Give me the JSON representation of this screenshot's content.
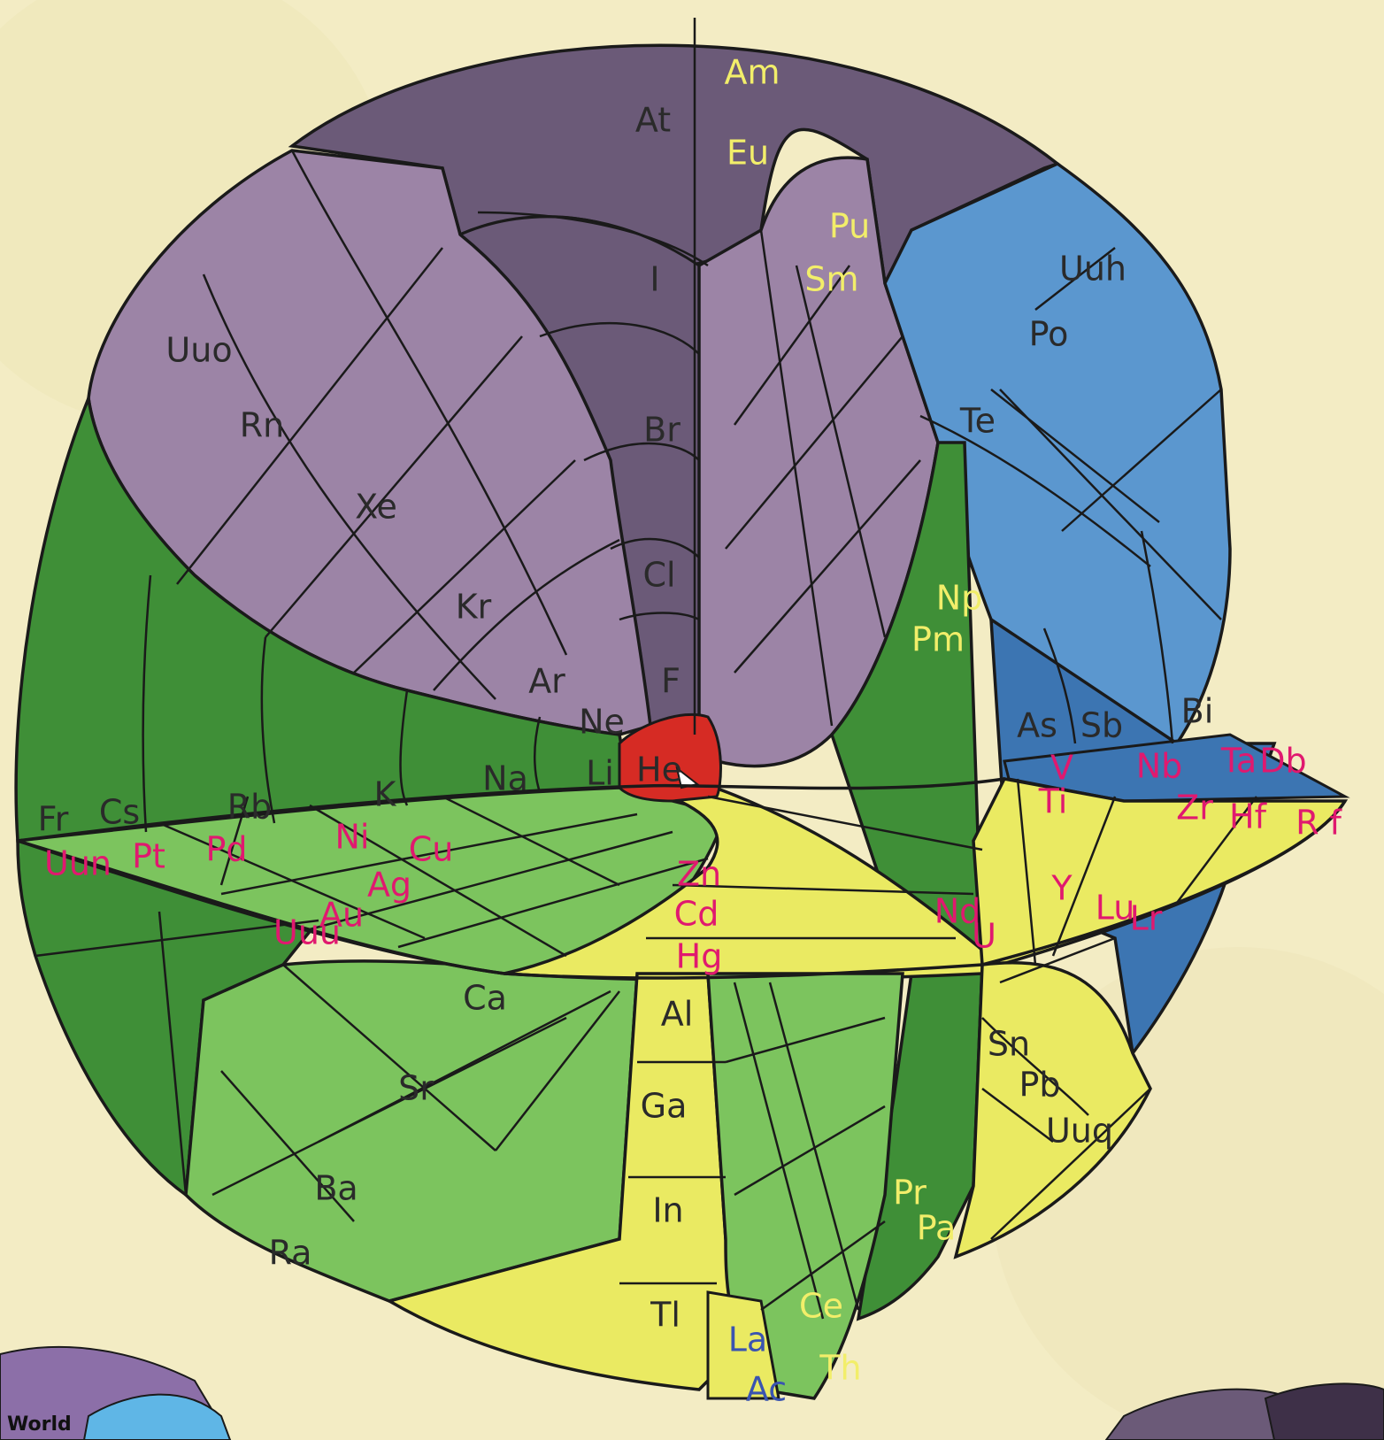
{
  "palette": {
    "background": "#f3ecc4",
    "p_block_outer": "#6b5a78",
    "p_block_inner": "#9c84a6",
    "s_block_dark": "#3f8f37",
    "s_block_light": "#7cc45e",
    "d_block": "#eaea62",
    "f_block_blue": "#5b97cf",
    "f_block_blue_dark": "#3c75b2",
    "center": "#d62b24"
  },
  "elements": {
    "dark": [
      "At",
      "I",
      "Br",
      "Cl",
      "F",
      "Ne",
      "Ar",
      "Kr",
      "Xe",
      "Rn",
      "Uuo",
      "Li",
      "Na",
      "K",
      "Rb",
      "Cs",
      "Fr",
      "Te",
      "Po",
      "Uuh",
      "As",
      "Sb",
      "Bi",
      "Al",
      "Ga",
      "In",
      "Tl",
      "Ca",
      "Sr",
      "Ba",
      "Ra",
      "Sn",
      "Pb",
      "Uuq",
      "He"
    ],
    "yellow": [
      "Am",
      "Eu",
      "Pu",
      "Sm",
      "Np",
      "Pm",
      "Pr",
      "Pa",
      "Ce",
      "Th"
    ],
    "pink": [
      "V",
      "Nb",
      "Ta",
      "Db",
      "Ti",
      "Zr",
      "Hf",
      "R f",
      "Uun",
      "Pt",
      "Pd",
      "Ni",
      "Cu",
      "Ag",
      "Au",
      "Uuu",
      "Zn",
      "Cd",
      "Hg",
      "Y",
      "Lu",
      "Lr",
      "Nd",
      "U"
    ],
    "blue": [
      "La",
      "Ac"
    ]
  },
  "corner_label": "World"
}
